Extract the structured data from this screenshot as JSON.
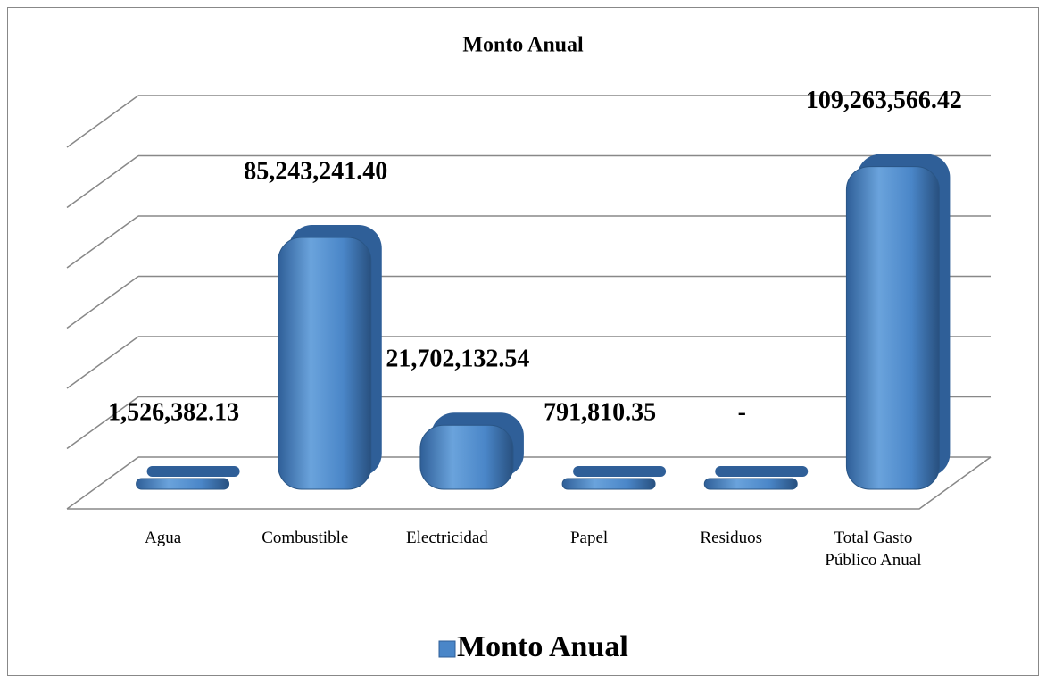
{
  "chart_data": {
    "type": "bar3d",
    "title": "Monto Anual",
    "categories": [
      "Agua",
      "Combustible",
      "Electricidad",
      "Papel",
      "Residuos",
      "Total Gasto Público Anual"
    ],
    "series": [
      {
        "name": "Monto Anual",
        "color": "#4a86c8",
        "values": [
          1526382.13,
          85243241.4,
          21702132.54,
          791810.35,
          0,
          109263566.42
        ],
        "value_labels": [
          "1,526,382.13",
          "85,243,241.40",
          "21,702,132.54",
          "791,810.35",
          "-",
          "109,263,566.42"
        ]
      }
    ],
    "ylim": [
      0,
      120000000
    ],
    "yticks": [
      0,
      20000000,
      40000000,
      60000000,
      80000000,
      100000000,
      120000000
    ],
    "grid": true,
    "legend": "bottom"
  }
}
